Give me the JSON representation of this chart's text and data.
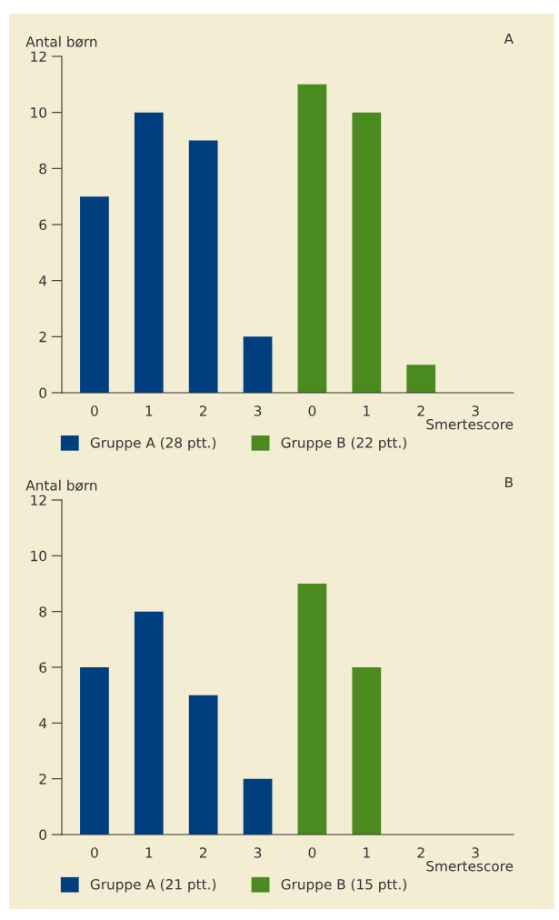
{
  "chart_data": [
    {
      "type": "bar",
      "title": "A",
      "ylabel": "Antal børn",
      "xlabel": "Smertescore",
      "categories": [
        "0",
        "1",
        "2",
        "3",
        "0",
        "1",
        "2",
        "3"
      ],
      "series": [
        {
          "name": "Gruppe A (28 ptt.)",
          "color": "#003f7f",
          "values": [
            7,
            10,
            9,
            2,
            null,
            null,
            null,
            null
          ]
        },
        {
          "name": "Gruppe B (22 ptt.)",
          "color": "#4b8a1f",
          "values": [
            null,
            null,
            null,
            null,
            11,
            10,
            1,
            0
          ]
        }
      ],
      "ylim": [
        0,
        12
      ],
      "yticks": [
        0,
        2,
        4,
        6,
        8,
        10,
        12
      ],
      "grid": false,
      "legend": "bottom"
    },
    {
      "type": "bar",
      "title": "B",
      "ylabel": "Antal børn",
      "xlabel": "Smertescore",
      "categories": [
        "0",
        "1",
        "2",
        "3",
        "0",
        "1",
        "2",
        "3"
      ],
      "series": [
        {
          "name": "Gruppe A (21 ptt.)",
          "color": "#003f7f",
          "values": [
            6,
            8,
            5,
            2,
            null,
            null,
            null,
            null
          ]
        },
        {
          "name": "Gruppe B (15 ptt.)",
          "color": "#4b8a1f",
          "values": [
            null,
            null,
            null,
            null,
            9,
            6,
            0,
            0
          ]
        }
      ],
      "ylim": [
        0,
        12
      ],
      "yticks": [
        0,
        2,
        4,
        6,
        8,
        10,
        12
      ],
      "grid": false,
      "legend": "bottom"
    }
  ]
}
